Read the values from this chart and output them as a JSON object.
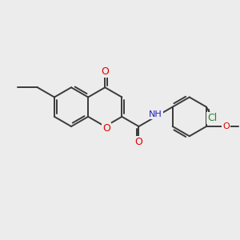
{
  "background_color": "#ececec",
  "bond_color": "#3a3a3a",
  "bond_width": 1.4,
  "o_color": "#dd0000",
  "n_color": "#2222bb",
  "cl_color": "#228822",
  "figsize": [
    3.0,
    3.0
  ],
  "dpi": 100,
  "xlim": [
    0,
    10
  ],
  "ylim": [
    0,
    10
  ]
}
